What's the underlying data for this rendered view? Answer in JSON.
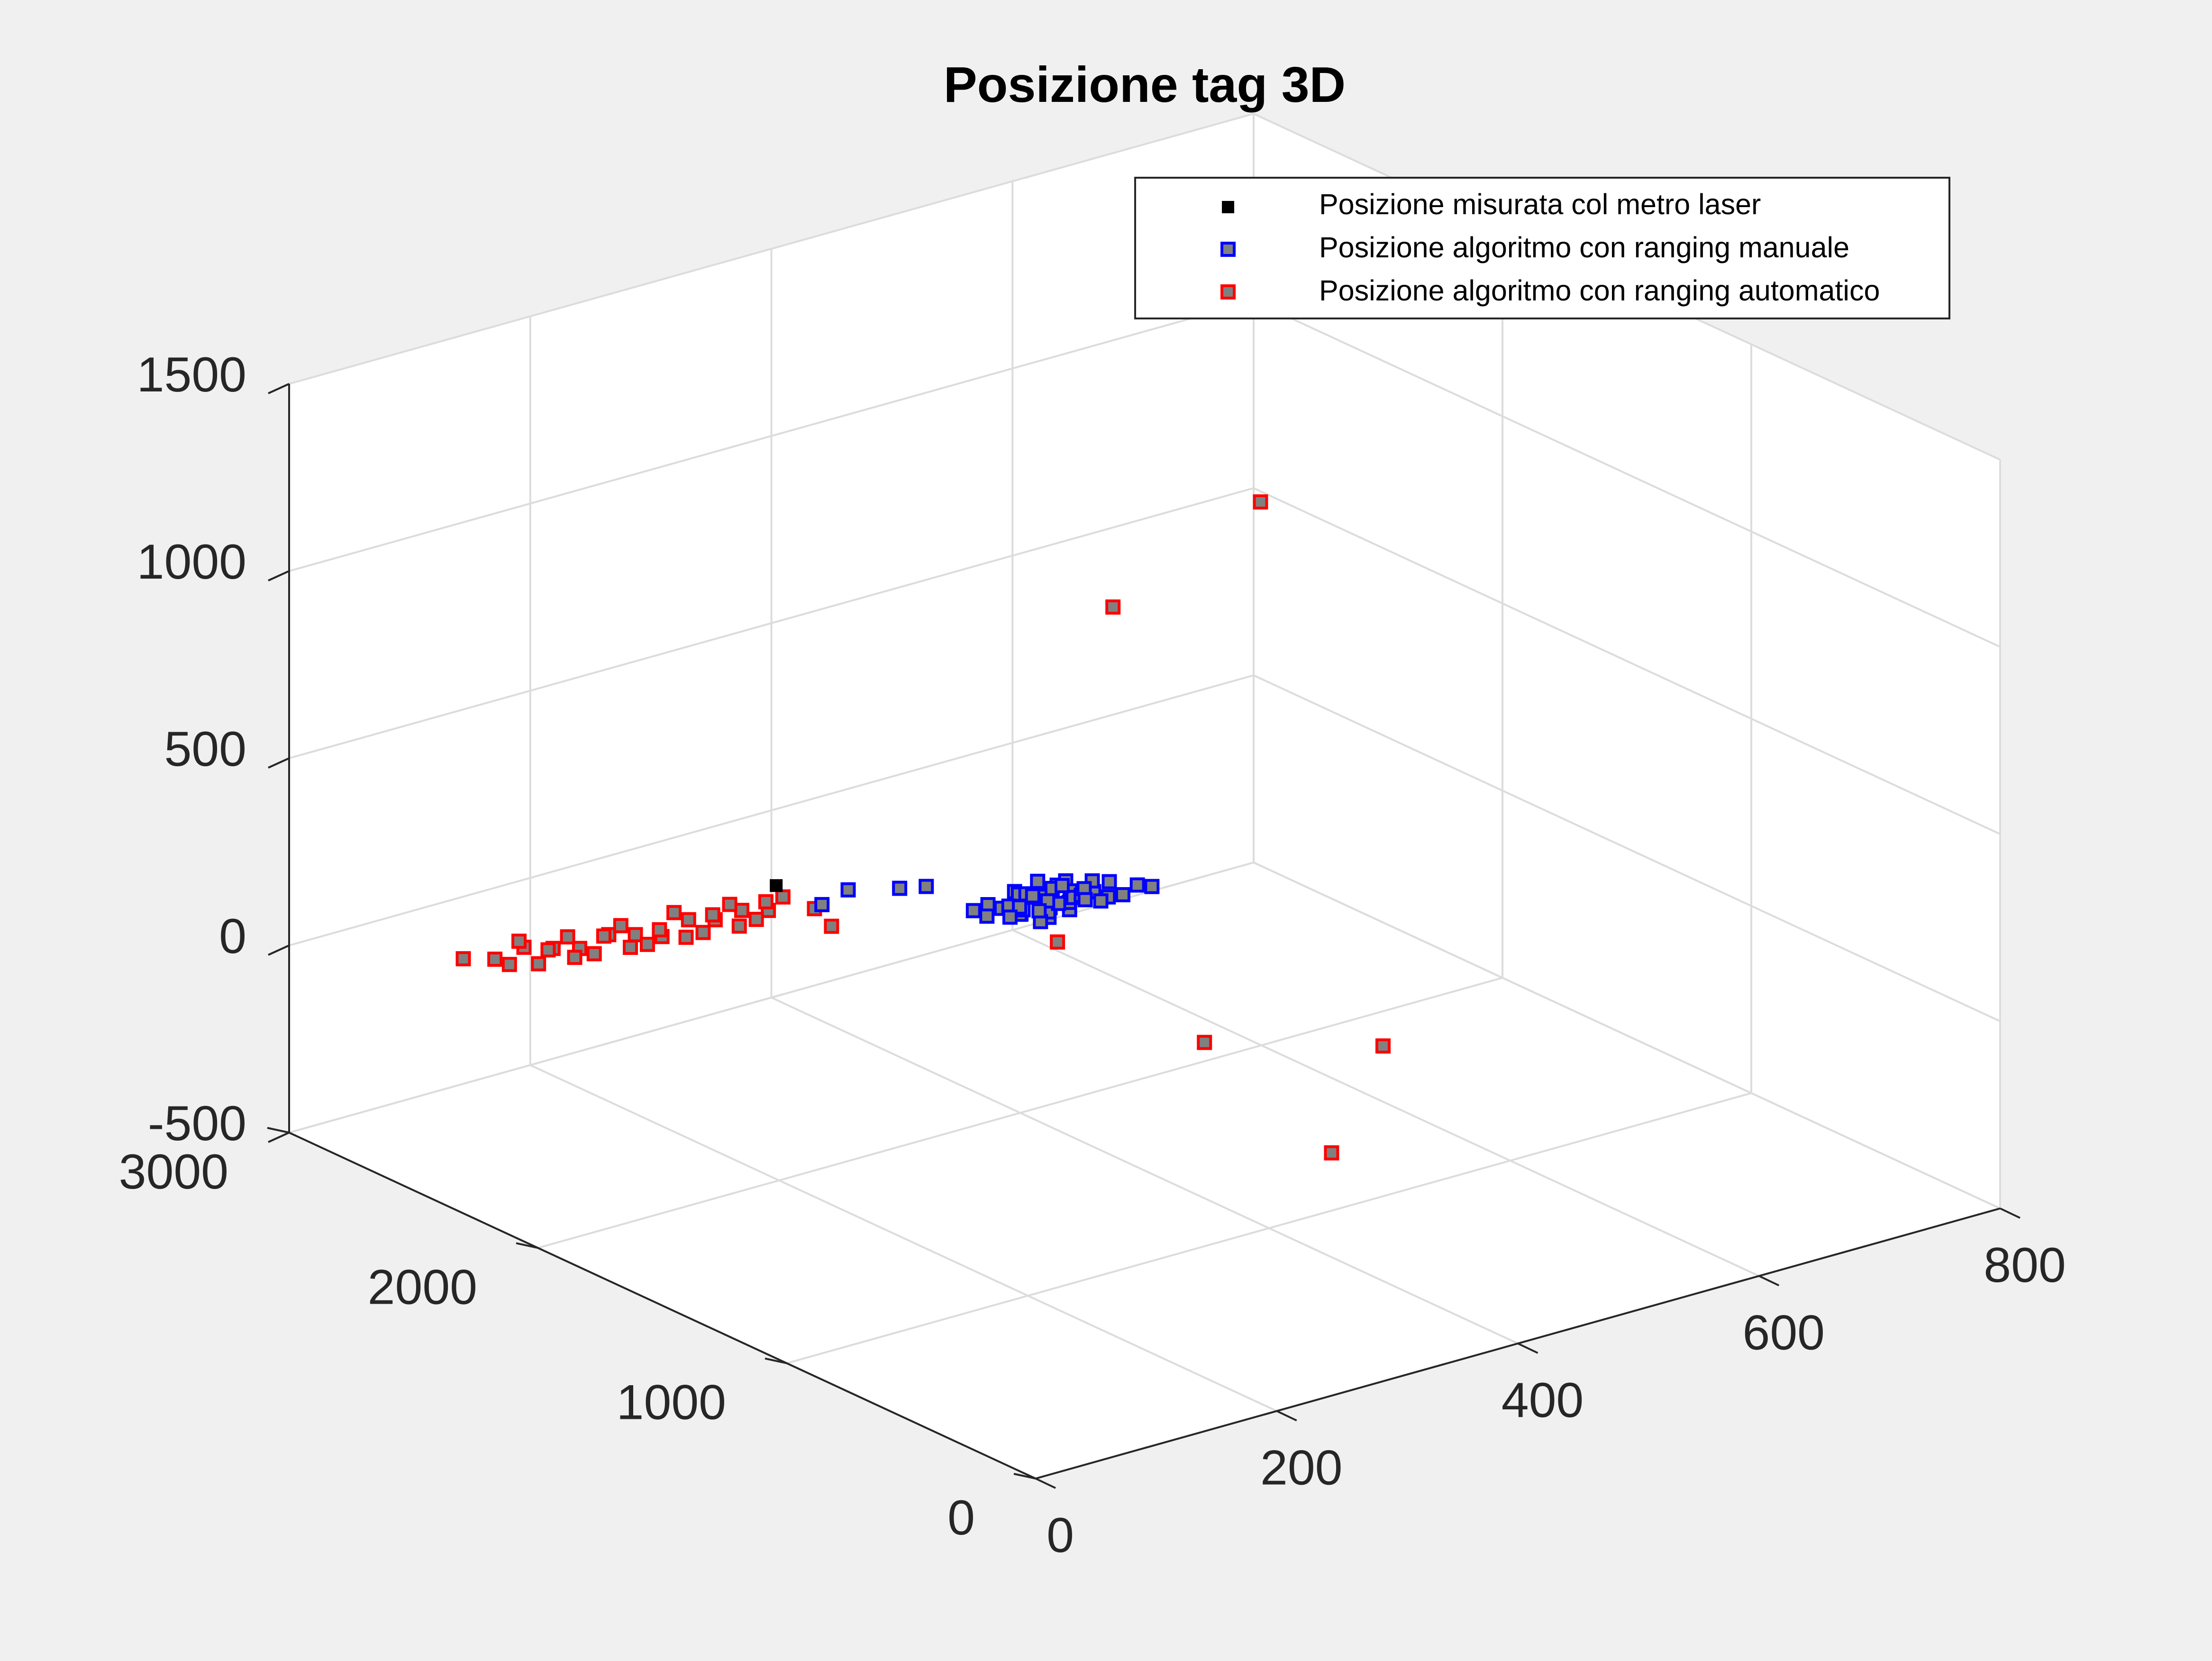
{
  "colors": {
    "figure_bg": "#f0f0f0",
    "axes_bg": "#ffffff",
    "grid": "#dcdcdc",
    "axis": "#262626",
    "measured": "#000000",
    "manual_edge": "#0000ff",
    "auto_edge": "#ff0000",
    "marker_fill": "#808080"
  },
  "chart_data": {
    "type": "scatter3d",
    "title": "Posizione tag 3D",
    "xlabel": "",
    "ylabel": "",
    "zlabel": "",
    "xlim": [
      0,
      800
    ],
    "ylim": [
      0,
      3000
    ],
    "zlim": [
      -500,
      1500
    ],
    "xticks": [
      0,
      200,
      400,
      600,
      800
    ],
    "yticks": [
      0,
      1000,
      2000,
      3000
    ],
    "zticks": [
      -500,
      0,
      500,
      1000,
      1500
    ],
    "x_tick_labels": [
      "0",
      "200",
      "400",
      "600",
      "800"
    ],
    "y_tick_labels": [
      "0",
      "1000",
      "2000",
      "3000"
    ],
    "z_tick_labels": [
      "-500",
      "0",
      "500",
      "1000",
      "1500"
    ],
    "grid": true,
    "legend_position": "top-right",
    "legend": [
      "Posizione misurata col metro laser",
      "Posizione algoritmo con ranging manuale",
      "Posizione algoritmo con ranging automatico"
    ],
    "series": [
      {
        "name": "Posizione misurata col metro laser",
        "marker": "square-filled",
        "points": [
          [
            210,
            2060,
            260
          ]
        ]
      },
      {
        "name": "Posizione algoritmo con ranging manuale",
        "marker": "square",
        "points": [
          [
            250,
            2070,
            170
          ],
          [
            300,
            2000,
            190
          ],
          [
            280,
            2110,
            170
          ],
          [
            320,
            1990,
            180
          ],
          [
            370,
            1930,
            95
          ],
          [
            380,
            1900,
            80
          ],
          [
            390,
            1920,
            110
          ],
          [
            400,
            1880,
            85
          ],
          [
            385,
            1950,
            120
          ],
          [
            410,
            1900,
            130
          ],
          [
            420,
            1870,
            100
          ],
          [
            395,
            1860,
            70
          ],
          [
            405,
            1910,
            60
          ],
          [
            375,
            1880,
            90
          ],
          [
            430,
            1850,
            110
          ],
          [
            415,
            1890,
            140
          ],
          [
            365,
            1960,
            100
          ],
          [
            440,
            1840,
            90
          ],
          [
            390,
            1940,
            70
          ],
          [
            400,
            1930,
            140
          ],
          [
            425,
            1920,
            95
          ],
          [
            380,
            1910,
            130
          ],
          [
            410,
            1850,
            80
          ],
          [
            395,
            1880,
            120
          ],
          [
            420,
            1900,
            75
          ],
          [
            435,
            1880,
            125
          ],
          [
            370,
            1900,
            110
          ],
          [
            405,
            1870,
            95
          ],
          [
            385,
            1930,
            85
          ],
          [
            445,
            1860,
            120
          ],
          [
            360,
            1940,
            80
          ],
          [
            415,
            1860,
            105
          ],
          [
            400,
            1890,
            100
          ],
          [
            430,
            1900,
            85
          ],
          [
            380,
            1880,
            140
          ],
          [
            410,
            1920,
            115
          ],
          [
            450,
            1830,
            90
          ],
          [
            460,
            1820,
            110
          ],
          [
            470,
            1810,
            100
          ],
          [
            390,
            1870,
            60
          ],
          [
            420,
            1840,
            130
          ],
          [
            375,
            1920,
            70
          ],
          [
            355,
            1970,
            90
          ],
          [
            440,
            1870,
            70
          ],
          [
            400,
            1950,
            95
          ],
          [
            425,
            1860,
            90
          ],
          [
            395,
            1900,
            75
          ],
          [
            410,
            1880,
            135
          ]
        ]
      },
      {
        "name": "Posizione algoritmo con ranging automatico",
        "marker": "square",
        "points": [
          [
            525,
            1640,
            1130
          ],
          [
            415,
            1700,
            930
          ],
          [
            305,
            1390,
            230
          ],
          [
            365,
            1090,
            0
          ],
          [
            445,
            760,
            20
          ],
          [
            295,
            240,
            30
          ],
          [
            0,
            2300,
            180
          ],
          [
            20,
            2270,
            170
          ],
          [
            40,
            2250,
            190
          ],
          [
            60,
            2230,
            175
          ],
          [
            80,
            2220,
            160
          ],
          [
            100,
            2200,
            185
          ],
          [
            120,
            2190,
            170
          ],
          [
            140,
            2180,
            150
          ],
          [
            160,
            2170,
            180
          ],
          [
            180,
            2160,
            165
          ],
          [
            200,
            2150,
            175
          ],
          [
            220,
            2140,
            160
          ],
          [
            30,
            2260,
            150
          ],
          [
            50,
            2240,
            140
          ],
          [
            70,
            2220,
            200
          ],
          [
            90,
            2210,
            140
          ],
          [
            110,
            2200,
            200
          ],
          [
            130,
            2190,
            135
          ],
          [
            150,
            2180,
            205
          ],
          [
            170,
            2160,
            140
          ],
          [
            190,
            2150,
            200
          ],
          [
            210,
            2140,
            145
          ],
          [
            230,
            2130,
            190
          ],
          [
            250,
            2100,
            150
          ],
          [
            60,
            2250,
            165
          ],
          [
            100,
            2220,
            175
          ],
          [
            140,
            2190,
            165
          ],
          [
            180,
            2170,
            175
          ],
          [
            220,
            2150,
            180
          ],
          [
            40,
            2270,
            200
          ],
          [
            80,
            2240,
            130
          ],
          [
            120,
            2210,
            130
          ],
          [
            160,
            2180,
            130
          ],
          [
            200,
            2160,
            130
          ],
          [
            260,
            2080,
            100
          ]
        ]
      }
    ]
  }
}
